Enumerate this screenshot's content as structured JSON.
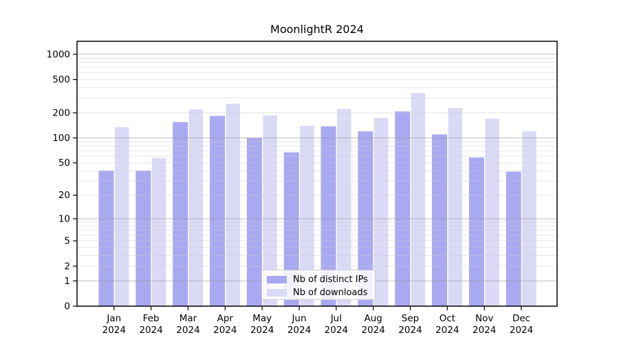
{
  "chart_data": {
    "type": "bar",
    "title": "MoonlightR 2024",
    "categories": [
      "Jan",
      "Feb",
      "Mar",
      "Apr",
      "May",
      "Jun",
      "Jul",
      "Aug",
      "Sep",
      "Oct",
      "Nov",
      "Dec"
    ],
    "year_label": "2024",
    "series": [
      {
        "name": "Nb of distinct IPs",
        "color": "#a9a9f2",
        "values": [
          40,
          40,
          155,
          184,
          100,
          67,
          138,
          120,
          208,
          110,
          58,
          39
        ]
      },
      {
        "name": "Nb of downloads",
        "color": "#dadaf7",
        "values": [
          135,
          57,
          220,
          257,
          187,
          140,
          223,
          174,
          345,
          228,
          170,
          120
        ]
      }
    ],
    "y_ticks": [
      0,
      1,
      2,
      5,
      10,
      20,
      50,
      100,
      200,
      500,
      1000
    ],
    "y_scale": "log10(1+v)",
    "ylim": [
      0,
      1430
    ],
    "grid": true,
    "legend_position": "bottom-center",
    "colors": {
      "axis": "#000000",
      "major_grid": "#999999",
      "minor_grid": "#cccccc",
      "text": "#000000"
    }
  }
}
